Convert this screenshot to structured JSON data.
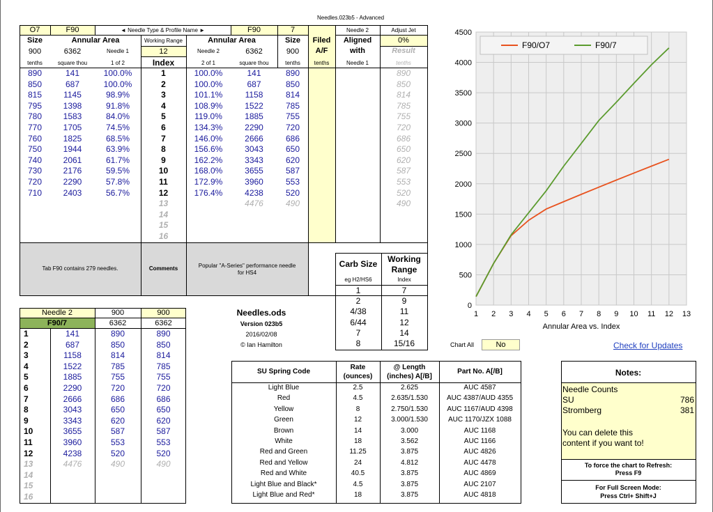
{
  "file_title": "Needles.023b5 - Advanced",
  "main_table": {
    "header": {
      "n1_name": "O7",
      "n1_profile": "F90",
      "nav_label": "◄ Needle Type & Profile Name ►",
      "n2_profile": "F90",
      "n2_name": "7",
      "size_label_1": "Size",
      "area_label_1": "Annular Area",
      "working_range_label": "Working Range",
      "area_label_2": "Annular Area",
      "size_label_2": "Size",
      "filed_label": "Filed",
      "af_label": "A/F",
      "needle2_label": "Needle 2",
      "aligned_label": "Aligned",
      "with_label": "with",
      "adjust_jet_label": "Adjust Jet",
      "adjust_jet_value": "0%",
      "result_label": "Result",
      "size_1": "900",
      "area_1": "6362",
      "needle1_label": "Needle 1",
      "working_range_value": "12",
      "index_label": "Index",
      "needle2_sub_label": "Needle 2",
      "area_2": "6362",
      "size_2": "900",
      "unit_tenths_1": "tenths",
      "unit_sqthou_1": "square thou",
      "unit_1of2": "1 of 2",
      "unit_2of1": "2 of 1",
      "unit_sqthou_2": "square thou",
      "unit_tenths_2": "tenths",
      "unit_tenths_3": "tenths",
      "unit_needle1": "Needle 1",
      "unit_tenths_4": "tenths"
    },
    "rows": [
      {
        "size1": "890",
        "area1": "141",
        "pct1": "100.0%",
        "idx": "1",
        "pct2": "100.0%",
        "area2": "141",
        "size2": "890",
        "result": "890"
      },
      {
        "size1": "850",
        "area1": "687",
        "pct1": "100.0%",
        "idx": "2",
        "pct2": "100.0%",
        "area2": "687",
        "size2": "850",
        "result": "850"
      },
      {
        "size1": "815",
        "area1": "1145",
        "pct1": "98.9%",
        "idx": "3",
        "pct2": "101.1%",
        "area2": "1158",
        "size2": "814",
        "result": "814"
      },
      {
        "size1": "795",
        "area1": "1398",
        "pct1": "91.8%",
        "idx": "4",
        "pct2": "108.9%",
        "area2": "1522",
        "size2": "785",
        "result": "785"
      },
      {
        "size1": "780",
        "area1": "1583",
        "pct1": "84.0%",
        "idx": "5",
        "pct2": "119.0%",
        "area2": "1885",
        "size2": "755",
        "result": "755"
      },
      {
        "size1": "770",
        "area1": "1705",
        "pct1": "74.5%",
        "idx": "6",
        "pct2": "134.3%",
        "area2": "2290",
        "size2": "720",
        "result": "720"
      },
      {
        "size1": "760",
        "area1": "1825",
        "pct1": "68.5%",
        "idx": "7",
        "pct2": "146.0%",
        "area2": "2666",
        "size2": "686",
        "result": "686"
      },
      {
        "size1": "750",
        "area1": "1944",
        "pct1": "63.9%",
        "idx": "8",
        "pct2": "156.6%",
        "area2": "3043",
        "size2": "650",
        "result": "650"
      },
      {
        "size1": "740",
        "area1": "2061",
        "pct1": "61.7%",
        "idx": "9",
        "pct2": "162.2%",
        "area2": "3343",
        "size2": "620",
        "result": "620"
      },
      {
        "size1": "730",
        "area1": "2176",
        "pct1": "59.5%",
        "idx": "10",
        "pct2": "168.0%",
        "area2": "3655",
        "size2": "587",
        "result": "587"
      },
      {
        "size1": "720",
        "area1": "2290",
        "pct1": "57.8%",
        "idx": "11",
        "pct2": "172.9%",
        "area2": "3960",
        "size2": "553",
        "result": "553"
      },
      {
        "size1": "710",
        "area1": "2403",
        "pct1": "56.7%",
        "idx": "12",
        "pct2": "176.4%",
        "area2": "4238",
        "size2": "520",
        "result": "520"
      }
    ],
    "ghost_rows": [
      {
        "idx": "13",
        "area2": "4476",
        "size2": "490",
        "result": "490"
      },
      {
        "idx": "14"
      },
      {
        "idx": "15"
      },
      {
        "idx": "16"
      }
    ],
    "footer": {
      "tab_info": "Tab F90 contains 279 needles.",
      "comments_label": "Comments",
      "comment_text_1": "Popular \"A-Series\" performance needle",
      "comment_text_2": "for HS4"
    }
  },
  "needle2_table": {
    "header_label": "Needle 2",
    "size_a": "900",
    "size_b": "900",
    "name": "F90/7",
    "area_a": "6362",
    "area_b": "6362",
    "rows": [
      {
        "idx": "1",
        "area": "141",
        "s1": "890",
        "s2": "890"
      },
      {
        "idx": "2",
        "area": "687",
        "s1": "850",
        "s2": "850"
      },
      {
        "idx": "3",
        "area": "1158",
        "s1": "814",
        "s2": "814"
      },
      {
        "idx": "4",
        "area": "1522",
        "s1": "785",
        "s2": "785"
      },
      {
        "idx": "5",
        "area": "1885",
        "s1": "755",
        "s2": "755"
      },
      {
        "idx": "6",
        "area": "2290",
        "s1": "720",
        "s2": "720"
      },
      {
        "idx": "7",
        "area": "2666",
        "s1": "686",
        "s2": "686"
      },
      {
        "idx": "8",
        "area": "3043",
        "s1": "650",
        "s2": "650"
      },
      {
        "idx": "9",
        "area": "3343",
        "s1": "620",
        "s2": "620"
      },
      {
        "idx": "10",
        "area": "3655",
        "s1": "587",
        "s2": "587"
      },
      {
        "idx": "11",
        "area": "3960",
        "s1": "553",
        "s2": "553"
      },
      {
        "idx": "12",
        "area": "4238",
        "s1": "520",
        "s2": "520"
      }
    ],
    "ghost_rows": [
      {
        "idx": "13",
        "area": "4476",
        "s1": "490",
        "s2": "490"
      },
      {
        "idx": "14"
      },
      {
        "idx": "15"
      },
      {
        "idx": "16"
      }
    ]
  },
  "info": {
    "app_name": "Needles.ods",
    "version": "Version 023b5",
    "date": "2016/02/08",
    "author": "© Ian Hamilton"
  },
  "carb_table": {
    "carb_size_label": "Carb Size",
    "carb_sub_label": "eg H2/HS6",
    "range_label_1": "Working",
    "range_label_2": "Range",
    "range_sub_label": "Index",
    "rows": [
      {
        "carb": "1",
        "range": "7"
      },
      {
        "carb": "2",
        "range": "9"
      },
      {
        "carb": "4/38",
        "range": "11"
      },
      {
        "carb": "6/44",
        "range": "12"
      },
      {
        "carb": "7",
        "range": "14"
      },
      {
        "carb": "8",
        "range": "15/16"
      }
    ]
  },
  "spring_table": {
    "headers": {
      "code": "SU Spring Code",
      "rate_1": "Rate",
      "rate_2": "(ounces)",
      "length_1": "@ Length",
      "length_2": "(inches) A[/B]",
      "part": "Part No. A[/B]"
    },
    "rows": [
      {
        "code": "Light Blue",
        "rate": "2.5",
        "length": "2.625",
        "part": "AUC 4587"
      },
      {
        "code": "Red",
        "rate": "4.5",
        "length": "2.635/1.530",
        "part": "AUC 4387/AUD 4355"
      },
      {
        "code": "Yellow",
        "rate": "8",
        "length": "2.750/1.530",
        "part": "AUC 1167/AUD 4398"
      },
      {
        "code": "Green",
        "rate": "12",
        "length": "3.000/1.530",
        "part": "AUC 1170/JZX 1088"
      },
      {
        "code": "Brown",
        "rate": "14",
        "length": "3.000",
        "part": "AUC 1168"
      },
      {
        "code": "White",
        "rate": "18",
        "length": "3.562",
        "part": "AUC 1166"
      },
      {
        "code": "Red and Green",
        "rate": "11.25",
        "length": "3.875",
        "part": "AUC 4826"
      },
      {
        "code": "Red and Yellow",
        "rate": "24",
        "length": "4.812",
        "part": "AUC 4478"
      },
      {
        "code": "Red and White",
        "rate": "40.5",
        "length": "3.875",
        "part": "AUC 4869"
      },
      {
        "code": "Light Blue and Black*",
        "rate": "4.5",
        "length": "3.875",
        "part": "AUC 2107"
      },
      {
        "code": "Light Blue and Red*",
        "rate": "18",
        "length": "3.875",
        "part": "AUC 4818"
      }
    ]
  },
  "chart_controls": {
    "chart_all_label": "Chart All",
    "chart_all_value": "No",
    "update_link": "Check for Updates"
  },
  "notes": {
    "title": "Notes:",
    "line_1": "Needle Counts",
    "su_label": "SU",
    "su_value": "786",
    "stromberg_label": "Stromberg",
    "stromberg_value": "381",
    "delete_1": "You can delete this",
    "delete_2": "content if you want to!",
    "refresh_1": "To force the chart to Refresh:",
    "refresh_2": "Press F9",
    "fullscreen_1": "For Full Screen Mode:",
    "fullscreen_2": "Press Ctrl+ Shift+J"
  },
  "chart_data": {
    "type": "line",
    "x": [
      1,
      2,
      3,
      4,
      5,
      6,
      7,
      8,
      9,
      10,
      11,
      12
    ],
    "series": [
      {
        "name": "F90/O7",
        "color": "#e8521e",
        "values": [
          141,
          687,
          1145,
          1398,
          1583,
          1705,
          1825,
          1944,
          2061,
          2176,
          2290,
          2403
        ]
      },
      {
        "name": "F90/7",
        "color": "#5b9b2e",
        "values": [
          141,
          687,
          1158,
          1522,
          1885,
          2290,
          2666,
          3043,
          3343,
          3655,
          3960,
          4238
        ]
      }
    ],
    "xlim": [
      1,
      13
    ],
    "ylim": [
      0,
      4500
    ],
    "xticks": [
      "1",
      "2",
      "3",
      "4",
      "5",
      "6",
      "7",
      "8",
      "9",
      "10",
      "11",
      "12",
      "13"
    ],
    "yticks": [
      "0",
      "500",
      "1000",
      "1500",
      "2000",
      "2500",
      "3000",
      "3500",
      "4000",
      "4500"
    ],
    "xlabel": "Annular Area vs. Index",
    "grid": true,
    "legend": "top"
  }
}
